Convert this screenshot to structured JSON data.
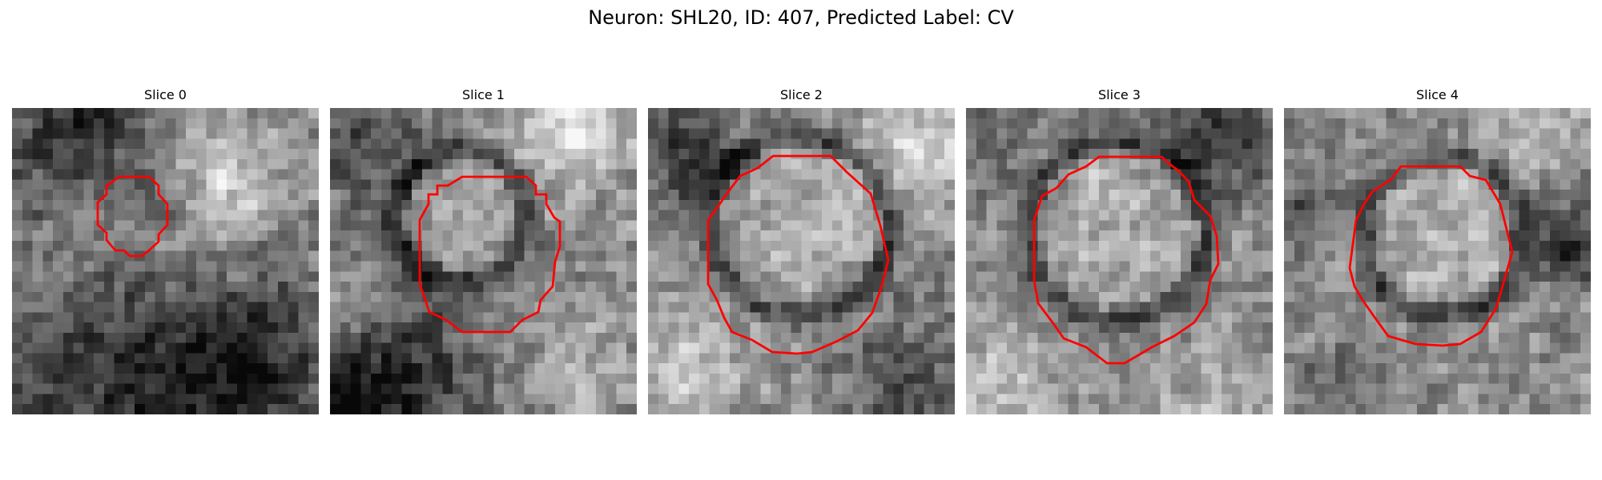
{
  "figure": {
    "title": "Neuron: SHL20, ID: 407, Predicted Label: CV"
  },
  "panels": [
    {
      "title": "Slice 0",
      "overlay_color": "#ff0000"
    },
    {
      "title": "Slice 1",
      "overlay_color": "#ff0000"
    },
    {
      "title": "Slice 2",
      "overlay_color": "#ff0000"
    },
    {
      "title": "Slice 3",
      "overlay_color": "#ff0000"
    },
    {
      "title": "Slice 4",
      "overlay_color": "#ff0000"
    }
  ]
}
